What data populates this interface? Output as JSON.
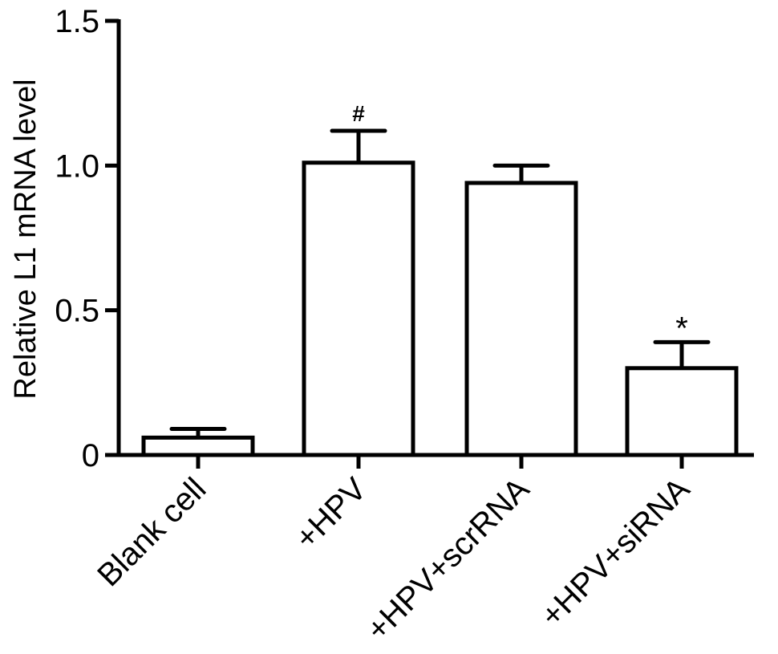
{
  "chart_data": {
    "type": "bar",
    "title": "",
    "xlabel": "",
    "ylabel": "Relative L1 mRNA level",
    "ylim": [
      0,
      1.5
    ],
    "yticks": [
      0,
      0.5,
      1.0,
      1.5
    ],
    "ytick_labels": [
      "0",
      "0.5",
      "1.0",
      "1.5"
    ],
    "categories": [
      "Blank cell",
      "+HPV",
      "+HPV+scrRNA",
      "+HPV+siRNA"
    ],
    "values": [
      0.06,
      1.01,
      0.94,
      0.3
    ],
    "errors": [
      0.03,
      0.11,
      0.06,
      0.09
    ],
    "annotations": [
      "",
      "#",
      "",
      "*"
    ],
    "grid": false,
    "bar_fill": "#ffffff",
    "bar_stroke": "#000000"
  }
}
